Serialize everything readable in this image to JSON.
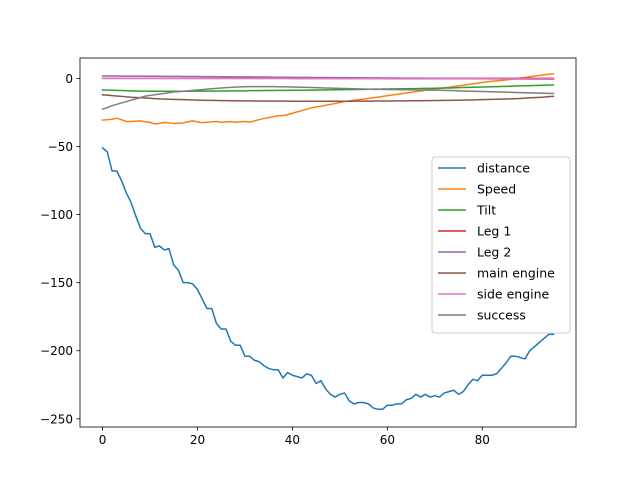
{
  "chart_data": {
    "type": "line",
    "title": "",
    "xlabel": "",
    "ylabel": "",
    "xlim": [
      -4.75,
      99.75
    ],
    "ylim": [
      -256,
      15
    ],
    "xticks": [
      0,
      20,
      40,
      60,
      80
    ],
    "yticks": [
      0,
      -50,
      -100,
      -150,
      -200,
      -250
    ],
    "grid": false,
    "legend_position": "center-right",
    "x": [
      0,
      1,
      2,
      3,
      4,
      5,
      6,
      7,
      8,
      9,
      10,
      11,
      12,
      13,
      14,
      15,
      16,
      17,
      18,
      19,
      20,
      21,
      22,
      23,
      24,
      25,
      26,
      27,
      28,
      29,
      30,
      31,
      32,
      33,
      34,
      35,
      36,
      37,
      38,
      39,
      40,
      41,
      42,
      43,
      44,
      45,
      46,
      47,
      48,
      49,
      50,
      51,
      52,
      53,
      54,
      55,
      56,
      57,
      58,
      59,
      60,
      61,
      62,
      63,
      64,
      65,
      66,
      67,
      68,
      69,
      70,
      71,
      72,
      73,
      74,
      75,
      76,
      77,
      78,
      79,
      80,
      81,
      82,
      83,
      84,
      85,
      86,
      87,
      88,
      89,
      90,
      91,
      92,
      93,
      94,
      95
    ],
    "series": [
      {
        "name": "distance",
        "color": "#1f77b4",
        "values": [
          -51,
          -54,
          -68,
          -68,
          -75,
          -84,
          -91,
          -101,
          -110,
          -114,
          -114,
          -124,
          -123,
          -126,
          -125,
          -137,
          -141,
          -150,
          -150,
          -151,
          -155,
          -162,
          -169,
          -169,
          -180,
          -184,
          -184,
          -193,
          -196,
          -196,
          -204,
          -204,
          -207,
          -208,
          -211,
          -213,
          -214,
          -214,
          -220,
          -216,
          -218,
          -219,
          -220,
          -217,
          -218,
          -224,
          -222,
          -228,
          -232,
          -234,
          -232,
          -231,
          -237,
          -239,
          -238,
          -238,
          -239,
          -242,
          -243,
          -243,
          -240,
          -240,
          -239,
          -239,
          -236,
          -235,
          -232,
          -234,
          -232,
          -234,
          -233,
          -234,
          -231,
          -230,
          -229,
          -232,
          -230,
          -225,
          -221,
          -222,
          -218,
          -218,
          -218,
          -217,
          -213,
          -209,
          -204,
          -204,
          -205,
          -206,
          -200,
          -197,
          -194,
          -191,
          -188,
          -188
        ]
      },
      {
        "name": "Speed",
        "color": "#ff7f0e",
        "values": [
          -30.6,
          -30.3,
          -30.0,
          -29.2,
          -30.3,
          -31.7,
          -31.6,
          -31.4,
          -31.2,
          -31.9,
          -32.3,
          -33.4,
          -33.0,
          -32.4,
          -32.6,
          -33.1,
          -32.8,
          -32.7,
          -31.8,
          -31.2,
          -31.9,
          -32.5,
          -32.2,
          -31.9,
          -31.6,
          -32.2,
          -31.9,
          -31.7,
          -32.2,
          -31.8,
          -31.6,
          -32.1,
          -31.2,
          -30.3,
          -29.4,
          -28.8,
          -28.1,
          -27.4,
          -27.2,
          -26.6,
          -25.6,
          -24.6,
          -23.6,
          -22.6,
          -21.6,
          -20.9,
          -20.4,
          -19.7,
          -19.1,
          -18.4,
          -17.7,
          -17.0,
          -16.5,
          -16.0,
          -15.6,
          -15.2,
          -14.7,
          -14.2,
          -13.7,
          -13.2,
          -12.7,
          -12.2,
          -11.7,
          -11.2,
          -10.7,
          -10.2,
          -9.7,
          -9.2,
          -8.7,
          -8.2,
          -7.7,
          -7.3,
          -6.9,
          -6.5,
          -6.0,
          -5.5,
          -5.0,
          -4.5,
          -4.0,
          -3.5,
          -3.0,
          -2.5,
          -2.1,
          -1.8,
          -1.5,
          -1.1,
          -0.7,
          -0.3,
          0.2,
          0.7,
          1.2,
          1.7,
          2.2,
          2.7,
          3.1,
          3.5
        ]
      },
      {
        "name": "Tilt",
        "color": "#2ca02c",
        "values": [
          -8.5,
          -8.6,
          -8.7,
          -8.8,
          -8.9,
          -9.0,
          -9.1,
          -9.2,
          -9.3,
          -9.3,
          -9.4,
          -9.4,
          -9.4,
          -9.4,
          -9.4,
          -9.4,
          -9.4,
          -9.4,
          -9.4,
          -9.3,
          -9.3,
          -9.3,
          -9.3,
          -9.3,
          -9.2,
          -9.2,
          -9.2,
          -9.1,
          -9.1,
          -9.1,
          -9.1,
          -9.0,
          -9.0,
          -9.0,
          -8.9,
          -8.9,
          -8.9,
          -8.8,
          -8.8,
          -8.8,
          -8.7,
          -8.7,
          -8.7,
          -8.6,
          -8.6,
          -8.5,
          -8.5,
          -8.4,
          -8.4,
          -8.3,
          -8.3,
          -8.2,
          -8.2,
          -8.1,
          -8.1,
          -8.0,
          -8.0,
          -7.9,
          -7.9,
          -7.8,
          -7.8,
          -7.7,
          -7.7,
          -7.6,
          -7.6,
          -7.5,
          -7.5,
          -7.4,
          -7.3,
          -7.3,
          -7.2,
          -7.1,
          -7.0,
          -7.0,
          -6.9,
          -6.8,
          -6.7,
          -6.6,
          -6.5,
          -6.4,
          -6.3,
          -6.2,
          -6.1,
          -6.0,
          -5.9,
          -5.8,
          -5.7,
          -5.6,
          -5.5,
          -5.4,
          -5.3,
          -5.2,
          -5.1,
          -5.0,
          -4.9,
          -4.8
        ]
      },
      {
        "name": "Leg 1",
        "color": "#d62728",
        "values": [
          0.0,
          0.0,
          0.0,
          0.0,
          0.0,
          0.0,
          0.0,
          0.0,
          0.0,
          0.0,
          0.0,
          0.0,
          0.0,
          0.0,
          0.0,
          0.0,
          0.0,
          0.0,
          0.0,
          0.0,
          0.0,
          0.0,
          0.0,
          0.0,
          0.0,
          0.0,
          0.0,
          0.0,
          0.0,
          0.0,
          0.0,
          0.0,
          0.0,
          0.0,
          0.0,
          0.0,
          0.0,
          0.0,
          0.0,
          0.0,
          0.0,
          0.0,
          0.0,
          0.0,
          0.0,
          0.0,
          0.0,
          0.0,
          0.0,
          0.0,
          0.0,
          0.0,
          0.0,
          0.0,
          0.0,
          0.0,
          0.0,
          0.0,
          0.0,
          0.0,
          0.0,
          0.0,
          0.0,
          0.0,
          0.0,
          0.0,
          0.0,
          0.0,
          0.0,
          0.0,
          0.0,
          0.0,
          0.0,
          0.0,
          0.0,
          0.0,
          0.0,
          0.0,
          0.0,
          0.0,
          0.0,
          0.0,
          0.0,
          0.0,
          0.0,
          0.0,
          0.0,
          0.0,
          0.0,
          0.0,
          0.0,
          0.0,
          0.0,
          0.0,
          0.0,
          0.0
        ]
      },
      {
        "name": "Leg 2",
        "color": "#9467bd",
        "values": [
          1.8,
          1.8,
          1.8,
          1.8,
          1.7,
          1.7,
          1.7,
          1.7,
          1.7,
          1.6,
          1.6,
          1.6,
          1.6,
          1.5,
          1.5,
          1.5,
          1.5,
          1.4,
          1.4,
          1.4,
          1.4,
          1.3,
          1.3,
          1.3,
          1.3,
          1.2,
          1.2,
          1.2,
          1.1,
          1.1,
          1.1,
          1.1,
          1.0,
          1.0,
          1.0,
          1.0,
          0.9,
          0.9,
          0.9,
          0.9,
          0.8,
          0.8,
          0.8,
          0.8,
          0.7,
          0.7,
          0.7,
          0.7,
          0.6,
          0.6,
          0.6,
          0.6,
          0.5,
          0.5,
          0.5,
          0.4,
          0.4,
          0.4,
          0.4,
          0.3,
          0.3,
          0.3,
          0.3,
          0.2,
          0.2,
          0.2,
          0.2,
          0.1,
          0.1,
          0.1,
          0.1,
          0.0,
          0.0,
          0.0,
          0.0,
          -0.1,
          -0.1,
          -0.1,
          -0.1,
          -0.2,
          -0.2,
          -0.2,
          -0.3,
          -0.3,
          -0.3,
          -0.3,
          -0.4,
          -0.4,
          -0.4,
          -0.4,
          -0.5,
          -0.5,
          -0.5,
          -0.5,
          -0.6,
          -0.6
        ]
      },
      {
        "name": "main engine",
        "color": "#8c564b",
        "values": [
          -12.0,
          -12.3,
          -12.6,
          -12.9,
          -13.2,
          -13.5,
          -13.8,
          -14.0,
          -14.2,
          -14.4,
          -14.6,
          -14.8,
          -15.0,
          -15.1,
          -15.3,
          -15.4,
          -15.5,
          -15.6,
          -15.7,
          -15.8,
          -15.9,
          -16.0,
          -16.1,
          -16.1,
          -16.2,
          -16.3,
          -16.3,
          -16.4,
          -16.4,
          -16.5,
          -16.5,
          -16.5,
          -16.6,
          -16.6,
          -16.6,
          -16.7,
          -16.7,
          -16.7,
          -16.7,
          -16.7,
          -16.8,
          -16.8,
          -16.8,
          -16.8,
          -16.8,
          -16.8,
          -16.8,
          -16.8,
          -16.8,
          -16.8,
          -16.8,
          -16.8,
          -16.8,
          -16.7,
          -16.7,
          -16.7,
          -16.7,
          -16.7,
          -16.6,
          -16.6,
          -16.6,
          -16.6,
          -16.5,
          -16.5,
          -16.5,
          -16.4,
          -16.4,
          -16.4,
          -16.3,
          -16.3,
          -16.2,
          -16.2,
          -16.1,
          -16.1,
          -16.0,
          -16.0,
          -15.9,
          -15.8,
          -15.8,
          -15.7,
          -15.6,
          -15.5,
          -15.4,
          -15.3,
          -15.2,
          -15.1,
          -15.0,
          -14.8,
          -14.7,
          -14.5,
          -14.3,
          -14.1,
          -13.9,
          -13.7,
          -13.4,
          -13.1
        ]
      },
      {
        "name": "side engine",
        "color": "#e377c2",
        "values": [
          0.0,
          0.0,
          0.0,
          0.0,
          0.0,
          0.0,
          0.0,
          0.0,
          0.0,
          0.0,
          0.0,
          0.0,
          0.0,
          0.0,
          0.0,
          0.0,
          0.0,
          0.0,
          0.0,
          0.0,
          -0.1,
          -0.1,
          -0.1,
          -0.1,
          -0.1,
          -0.1,
          -0.1,
          -0.1,
          -0.1,
          -0.1,
          -0.1,
          -0.1,
          -0.1,
          -0.1,
          -0.1,
          -0.1,
          -0.1,
          -0.1,
          -0.1,
          -0.1,
          -0.2,
          -0.2,
          -0.2,
          -0.2,
          -0.2,
          -0.2,
          -0.2,
          -0.2,
          -0.2,
          -0.2,
          -0.2,
          -0.2,
          -0.2,
          -0.2,
          -0.2,
          -0.2,
          -0.2,
          -0.2,
          -0.2,
          -0.2,
          -0.3,
          -0.3,
          -0.3,
          -0.3,
          -0.3,
          -0.3,
          -0.3,
          -0.3,
          -0.3,
          -0.3,
          -0.3,
          -0.3,
          -0.3,
          -0.3,
          -0.3,
          -0.3,
          -0.3,
          -0.3,
          -0.3,
          -0.3,
          -0.3,
          -0.3,
          -0.3,
          -0.3,
          -0.3,
          -0.3,
          -0.3,
          -0.3,
          -0.3,
          -0.3,
          -0.3,
          -0.3,
          -0.3,
          -0.3,
          -0.3,
          -0.3
        ]
      },
      {
        "name": "success",
        "color": "#7f7f7f",
        "values": [
          -22.5,
          -21.5,
          -20.0,
          -19.0,
          -18.0,
          -17.0,
          -16.0,
          -15.0,
          -14.0,
          -13.0,
          -12.5,
          -12.0,
          -11.5,
          -11.0,
          -10.5,
          -10.0,
          -9.7,
          -9.4,
          -9.1,
          -8.8,
          -8.5,
          -8.2,
          -7.9,
          -7.6,
          -7.3,
          -7.0,
          -6.8,
          -6.6,
          -6.4,
          -6.2,
          -6.1,
          -6.0,
          -6.0,
          -6.0,
          -6.0,
          -6.0,
          -6.0,
          -6.1,
          -6.1,
          -6.2,
          -6.3,
          -6.4,
          -6.5,
          -6.6,
          -6.7,
          -6.8,
          -6.9,
          -7.0,
          -7.1,
          -7.2,
          -7.3,
          -7.4,
          -7.5,
          -7.6,
          -7.7,
          -7.8,
          -7.9,
          -8.0,
          -8.0,
          -8.1,
          -8.1,
          -8.2,
          -8.2,
          -8.3,
          -8.3,
          -8.4,
          -8.4,
          -8.5,
          -8.5,
          -8.6,
          -8.6,
          -8.7,
          -8.8,
          -8.9,
          -9.0,
          -9.1,
          -9.2,
          -9.3,
          -9.4,
          -9.5,
          -9.6,
          -9.7,
          -9.8,
          -9.9,
          -10.0,
          -10.1,
          -10.2,
          -10.3,
          -10.4,
          -10.5,
          -10.6,
          -10.7,
          -10.8,
          -10.9,
          -11.0,
          -11.1
        ]
      }
    ]
  }
}
